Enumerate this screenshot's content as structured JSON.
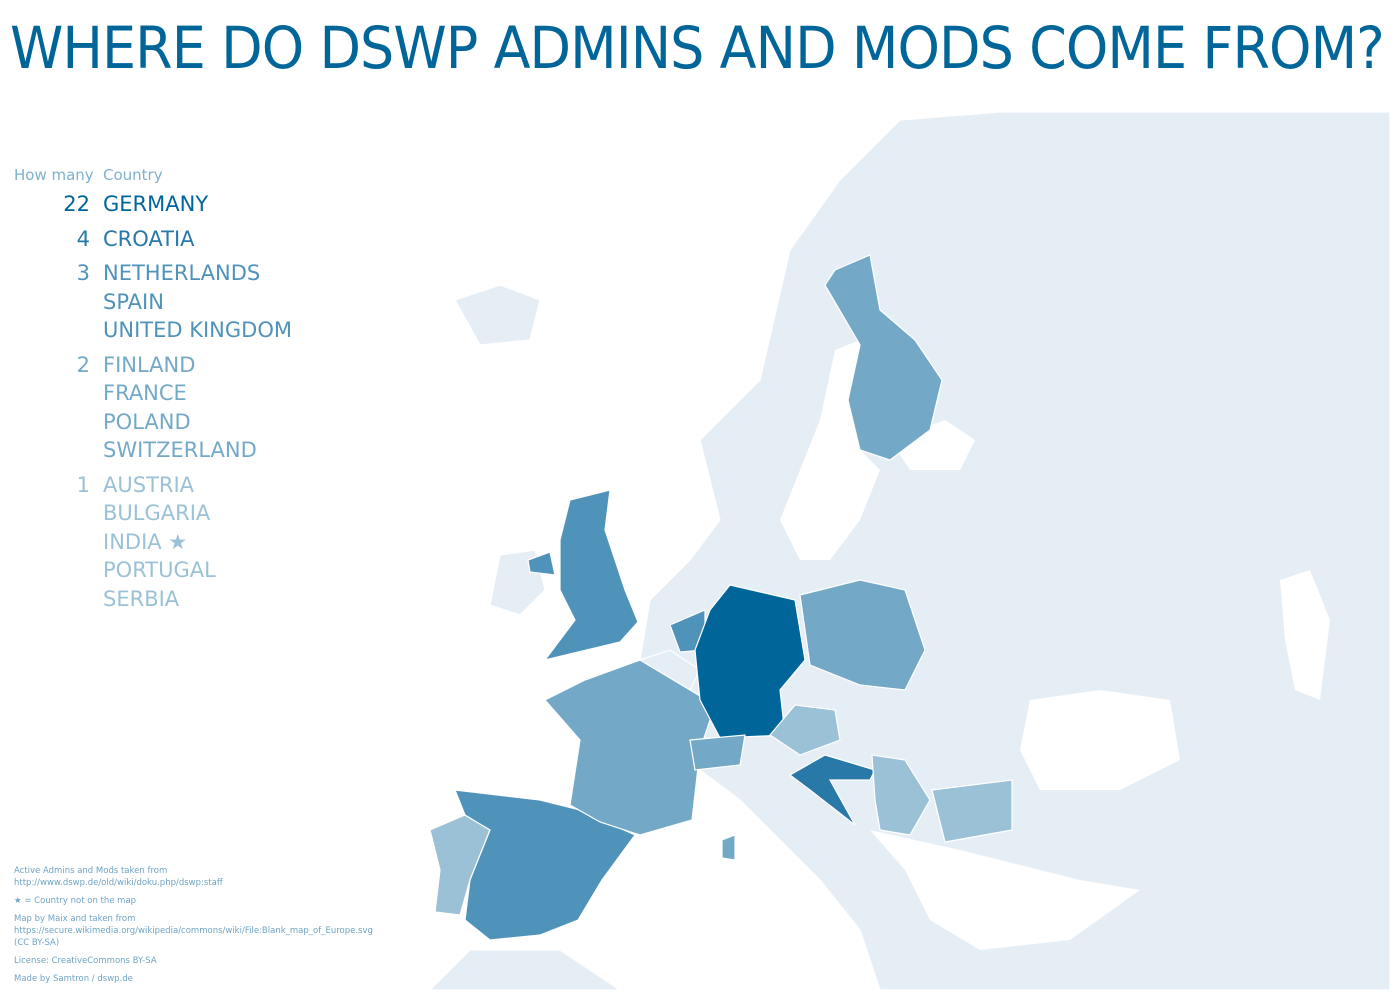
{
  "title": "WHERE DO DSWP ADMINS AND MODS COME FROM?",
  "legend": {
    "header_count": "How many",
    "header_country": "Country",
    "groups": [
      {
        "count": "22",
        "color": "#006699",
        "countries": [
          "GERMANY"
        ]
      },
      {
        "count": "4",
        "color": "#2878a8",
        "countries": [
          "CROATIA"
        ]
      },
      {
        "count": "3",
        "color": "#4f93ba",
        "countries": [
          "NETHERLANDS",
          "SPAIN",
          "UNITED KINGDOM"
        ]
      },
      {
        "count": "2",
        "color": "#73a9c7",
        "countries": [
          "FINLAND",
          "FRANCE",
          "POLAND",
          "SWITZERLAND"
        ]
      },
      {
        "count": "1",
        "color": "#9bc1d7",
        "countries": [
          "AUSTRIA",
          "BULGARIA",
          "INDIA",
          "PORTUGAL",
          "SERBIA"
        ]
      }
    ],
    "star_country": "INDIA",
    "star_icon": "star-icon"
  },
  "map_colors": {
    "land": "#e6eef5",
    "sea": "#ffffff",
    "border": "#ffffff"
  },
  "footer": {
    "source_line1": "Active Admins and Mods taken from",
    "source_line2": "http://www.dswp.de/old/wiki/doku.php/dswp:staff",
    "star_note": "★ = Country not on the map",
    "map_line1": "Map by Maix and taken from",
    "map_line2": "https://secure.wikimedia.org/wikipedia/commons/wiki/File:Blank_map_of_Europe.svg",
    "map_line3": "(CC BY-SA)",
    "license": "License: CreativeCommons BY-SA",
    "made_by": "Made by Samtron / dswp.de"
  }
}
